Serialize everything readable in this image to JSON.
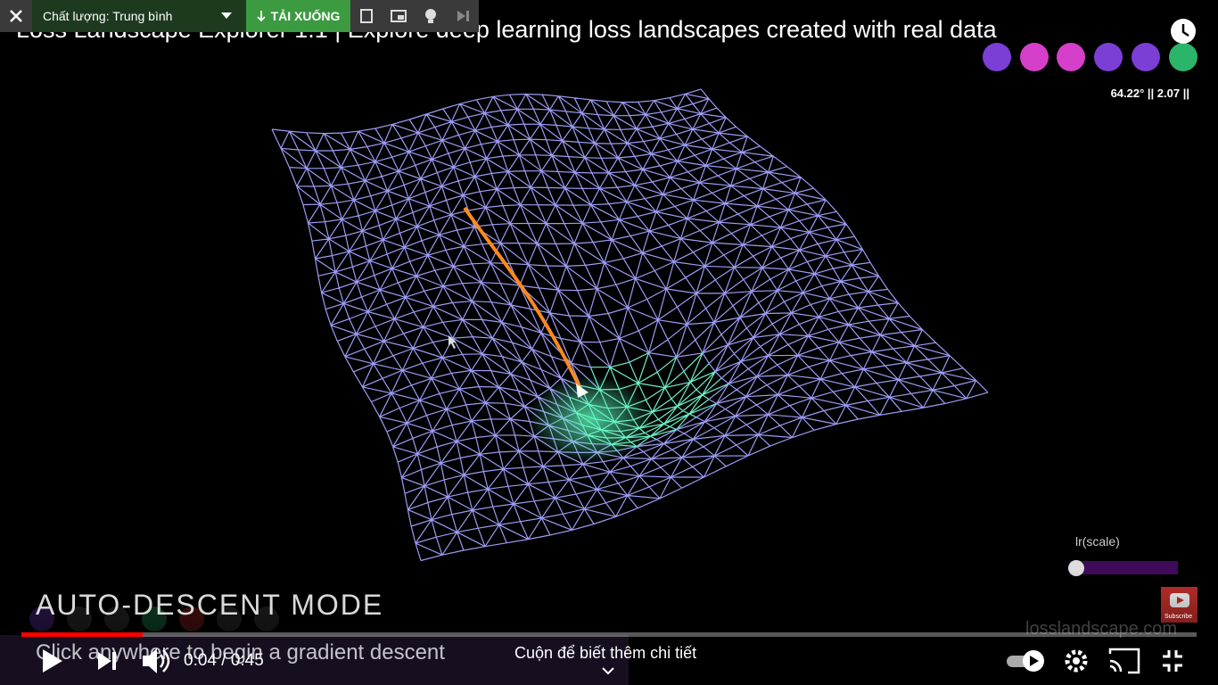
{
  "video_title": "Loss Landscape Explorer 1.1 | Explore deep learning loss landscapes created with real data",
  "toolbar": {
    "quality": "Chất lượng: Trung bình",
    "download": "TẢI XUỐNG"
  },
  "overlay": {
    "angle_readout": "64.22° || 2.07 ||",
    "slider_label": "lr(scale)",
    "mode": "AUTO-DESCENT MODE",
    "hint": "Click anywhere to begin a gradient descent",
    "site": "losslandscape.com",
    "subscribe": "Subscribe"
  },
  "controls": {
    "time": "0:04 / 0:45",
    "scroll_hint": "Cuộn để biết thêm chi tiết"
  }
}
